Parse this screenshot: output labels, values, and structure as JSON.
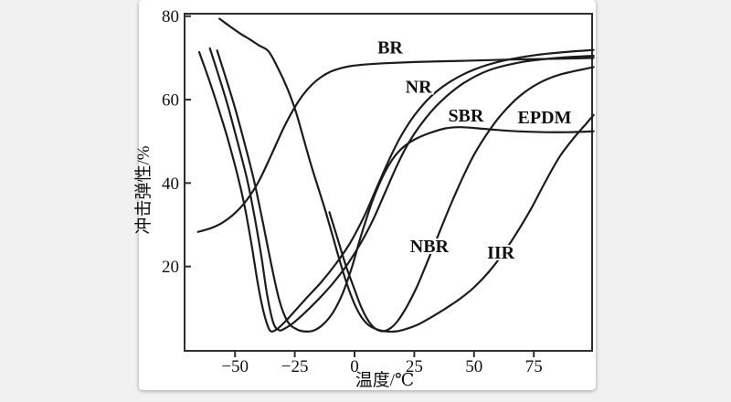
{
  "page": {
    "background_color": "#f1f1f2",
    "card_color": "#ffffff",
    "frame_color": "#2e2e2e",
    "text_color": "#111111"
  },
  "chart_data": {
    "type": "line",
    "title": "",
    "xlabel": "温度/℃",
    "ylabel": "冲击弹性/%",
    "xlim": [
      -71,
      99.5
    ],
    "ylim": [
      0,
      80.6
    ],
    "grid": false,
    "legend_position": "inline-labels",
    "line_color": "#1c1c1c",
    "x_ticks": [
      {
        "label": "−50",
        "value": -50
      },
      {
        "label": "−25",
        "value": -25
      },
      {
        "label": "0",
        "value": 0
      },
      {
        "label": "25",
        "value": 25
      },
      {
        "label": "50",
        "value": 50
      },
      {
        "label": "75",
        "value": 75
      }
    ],
    "y_ticks": [
      {
        "label": "20",
        "value": 20
      },
      {
        "label": "40",
        "value": 40
      },
      {
        "label": "60",
        "value": 60
      },
      {
        "label": "80",
        "value": 80
      }
    ],
    "series": [
      {
        "name": "BR",
        "label": {
          "text": "BR",
          "x": 14.9,
          "y": 72.6
        },
        "points": [
          [
            -65.5,
            28.3
          ],
          [
            -60,
            29.2
          ],
          [
            -55,
            30.6
          ],
          [
            -50,
            32.8
          ],
          [
            -45,
            36
          ],
          [
            -40,
            40.5
          ],
          [
            -35,
            46.5
          ],
          [
            -30,
            52.8
          ],
          [
            -26,
            57.2
          ],
          [
            -22,
            60.8
          ],
          [
            -18,
            63.5
          ],
          [
            -14,
            65.4
          ],
          [
            -10,
            66.7
          ],
          [
            -6,
            67.5
          ],
          [
            -2,
            68
          ],
          [
            4,
            68.4
          ],
          [
            12,
            68.7
          ],
          [
            25,
            69
          ],
          [
            45,
            69.3
          ],
          [
            65,
            69.6
          ],
          [
            85,
            69.8
          ],
          [
            100,
            70
          ]
        ]
      },
      {
        "name": "NR",
        "label": {
          "text": "NR",
          "x": 26.8,
          "y": 63.2
        },
        "points": [
          [
            -65,
            71.4
          ],
          [
            -61,
            65
          ],
          [
            -57,
            58
          ],
          [
            -53,
            50.5
          ],
          [
            -49,
            42
          ],
          [
            -46,
            34.5
          ],
          [
            -43,
            25
          ],
          [
            -40.5,
            16
          ],
          [
            -38,
            9
          ],
          [
            -36,
            5.3
          ],
          [
            -34.5,
            4.4
          ],
          [
            -32,
            5.2
          ],
          [
            -29,
            6.8
          ],
          [
            -25,
            9.3
          ],
          [
            -20,
            12.5
          ],
          [
            -14,
            16.2
          ],
          [
            -8,
            20.5
          ],
          [
            -2,
            25.5
          ],
          [
            4,
            32
          ],
          [
            9,
            38.5
          ],
          [
            14,
            45
          ],
          [
            19,
            50.8
          ],
          [
            25,
            56.2
          ],
          [
            32,
            60.8
          ],
          [
            40,
            64.3
          ],
          [
            50,
            67.2
          ],
          [
            62,
            69.3
          ],
          [
            76,
            70.7
          ],
          [
            88,
            71.4
          ],
          [
            100,
            71.9
          ]
        ]
      },
      {
        "name": "SBR",
        "label": {
          "text": "SBR",
          "x": 46.6,
          "y": 56.3
        },
        "points": [
          [
            -60.5,
            72.3
          ],
          [
            -57,
            66
          ],
          [
            -53,
            58.5
          ],
          [
            -49,
            50
          ],
          [
            -45,
            41
          ],
          [
            -42,
            32.5
          ],
          [
            -39,
            22.5
          ],
          [
            -36.5,
            13
          ],
          [
            -34,
            6.5
          ],
          [
            -31.5,
            4.7
          ],
          [
            -29,
            5.2
          ],
          [
            -26,
            6.3
          ],
          [
            -21,
            8.8
          ],
          [
            -15,
            12.2
          ],
          [
            -9,
            16
          ],
          [
            -3,
            20.5
          ],
          [
            3,
            26
          ],
          [
            8,
            31.5
          ],
          [
            13,
            38
          ],
          [
            18,
            44.5
          ],
          [
            23,
            50
          ],
          [
            29,
            55
          ],
          [
            36,
            59.5
          ],
          [
            45,
            63.7
          ],
          [
            56,
            67
          ],
          [
            70,
            69
          ],
          [
            85,
            70
          ],
          [
            100,
            70.5
          ]
        ]
      },
      {
        "name": "EPDM",
        "label": {
          "text": "EPDM",
          "x": 79.5,
          "y": 55.8
        },
        "points": [
          [
            -57.5,
            71.8
          ],
          [
            -54,
            65.5
          ],
          [
            -50,
            58
          ],
          [
            -46,
            49.5
          ],
          [
            -42,
            40.5
          ],
          [
            -38.5,
            31
          ],
          [
            -35,
            21
          ],
          [
            -31.5,
            12
          ],
          [
            -28,
            6.8
          ],
          [
            -24,
            4.9
          ],
          [
            -20,
            4.4
          ],
          [
            -16.5,
            4.8
          ],
          [
            -13,
            6.2
          ],
          [
            -9,
            9
          ],
          [
            -5,
            13.5
          ],
          [
            -1,
            20
          ],
          [
            2,
            26
          ],
          [
            5,
            31.5
          ],
          [
            8,
            36.5
          ],
          [
            12,
            41.8
          ],
          [
            16,
            45.8
          ],
          [
            20,
            48.4
          ],
          [
            25,
            50.4
          ],
          [
            31,
            51.9
          ],
          [
            38,
            53.1
          ],
          [
            44,
            53.4
          ],
          [
            50,
            53.2
          ],
          [
            58,
            52.8
          ],
          [
            68,
            52.4
          ],
          [
            80,
            52.2
          ],
          [
            90,
            52.2
          ],
          [
            100,
            52.4
          ]
        ]
      },
      {
        "name": "NBR",
        "label": {
          "text": "NBR",
          "x": 31.3,
          "y": 25
        },
        "points": [
          [
            -10.5,
            33
          ],
          [
            -7,
            26.5
          ],
          [
            -3.5,
            20
          ],
          [
            0,
            14.5
          ],
          [
            3,
            10
          ],
          [
            6,
            6.8
          ],
          [
            9,
            5
          ],
          [
            12,
            4.5
          ],
          [
            15,
            5.2
          ],
          [
            18,
            6.9
          ],
          [
            22,
            10.5
          ],
          [
            26,
            15
          ],
          [
            30,
            20.5
          ],
          [
            35,
            27.5
          ],
          [
            40,
            34.5
          ],
          [
            45,
            41
          ],
          [
            50,
            46.8
          ],
          [
            56,
            52.3
          ],
          [
            62,
            56.8
          ],
          [
            69,
            60.8
          ],
          [
            77,
            63.9
          ],
          [
            86,
            66
          ],
          [
            100,
            67.8
          ]
        ]
      },
      {
        "name": "IIR",
        "label": {
          "text": "IIR",
          "x": 61.2,
          "y": 23.4
        },
        "points": [
          [
            -56.5,
            79.4
          ],
          [
            -52,
            77.5
          ],
          [
            -48,
            75.9
          ],
          [
            -44,
            74.5
          ],
          [
            -40,
            73
          ],
          [
            -36,
            71.6
          ],
          [
            -32,
            67.5
          ],
          [
            -28,
            62.5
          ],
          [
            -24.5,
            57
          ],
          [
            -21,
            50
          ],
          [
            -18,
            44
          ],
          [
            -15,
            38.5
          ],
          [
            -12,
            33
          ],
          [
            -9,
            27
          ],
          [
            -6,
            21
          ],
          [
            -3,
            15.5
          ],
          [
            0,
            11
          ],
          [
            3,
            7.8
          ],
          [
            6,
            5.9
          ],
          [
            10,
            4.8
          ],
          [
            14,
            4.4
          ],
          [
            18,
            4.5
          ],
          [
            22,
            5.1
          ],
          [
            27,
            6.2
          ],
          [
            32,
            7.8
          ],
          [
            38,
            9.9
          ],
          [
            44,
            12.2
          ],
          [
            50,
            15
          ],
          [
            56,
            18.6
          ],
          [
            62,
            23
          ],
          [
            68,
            28.2
          ],
          [
            74,
            34
          ],
          [
            80,
            40.5
          ],
          [
            86,
            46.5
          ],
          [
            92,
            51
          ],
          [
            97,
            54.3
          ],
          [
            100,
            56.3
          ]
        ]
      }
    ]
  }
}
